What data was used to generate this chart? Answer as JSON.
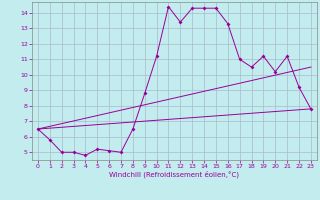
{
  "xlabel": "Windchill (Refroidissement éolien,°C)",
  "bg_color": "#c2ecee",
  "line_color": "#990099",
  "grid_color": "#aabbcc",
  "xlim": [
    -0.5,
    23.5
  ],
  "ylim": [
    4.5,
    14.7
  ],
  "xticks": [
    0,
    1,
    2,
    3,
    4,
    5,
    6,
    7,
    8,
    9,
    10,
    11,
    12,
    13,
    14,
    15,
    16,
    17,
    18,
    19,
    20,
    21,
    22,
    23
  ],
  "yticks": [
    5,
    6,
    7,
    8,
    9,
    10,
    11,
    12,
    13,
    14
  ],
  "main_x": [
    0,
    1,
    2,
    3,
    4,
    5,
    6,
    7,
    8,
    9,
    10,
    11,
    12,
    13,
    14,
    15,
    16,
    17,
    18,
    19,
    20,
    21,
    22,
    23
  ],
  "main_y": [
    6.5,
    5.8,
    5.0,
    5.0,
    4.8,
    5.2,
    5.1,
    5.0,
    6.5,
    8.8,
    11.2,
    14.4,
    13.4,
    14.3,
    14.3,
    14.3,
    13.3,
    11.0,
    10.5,
    11.2,
    10.2,
    11.2,
    9.2,
    7.8
  ],
  "upper_line_x": [
    0,
    23
  ],
  "upper_line_y": [
    6.5,
    10.5
  ],
  "lower_line_x": [
    0,
    23
  ],
  "lower_line_y": [
    6.5,
    7.8
  ]
}
